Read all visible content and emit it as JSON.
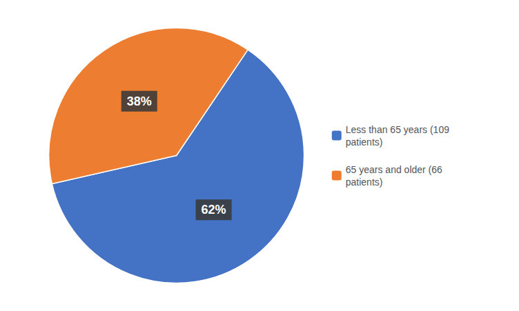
{
  "chart_data": {
    "type": "pie",
    "categories": [
      "Less than 65 years (109\npatients)",
      "65 years and older (66\npatients)"
    ],
    "values": [
      62,
      38
    ],
    "value_labels": [
      "62%",
      "38%"
    ],
    "colors": [
      "#4472C4",
      "#ED7D31"
    ],
    "data_labels": true,
    "legend": "right"
  }
}
